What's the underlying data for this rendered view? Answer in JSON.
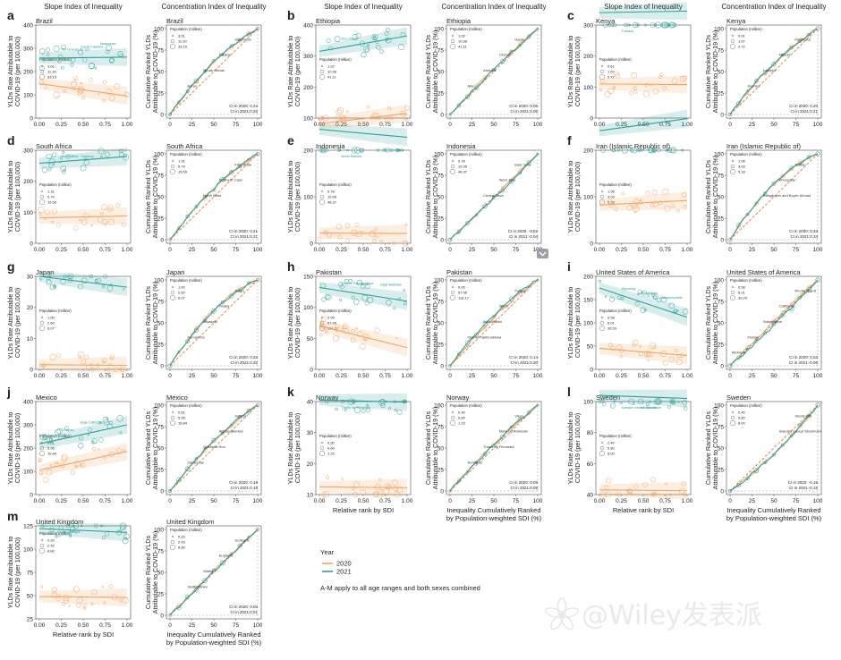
{
  "column_headers": {
    "slope": "Slope Index of Inequality",
    "concentration": "Concentration Index of Inequality"
  },
  "axis_text": {
    "slope_ylabel_line1": "YLDs Rate Attributable to",
    "slope_ylabel_line2": "COVID-19 (per 100,000)",
    "conc_ylabel_line1": "Cumulative Ranked YLDs",
    "conc_ylabel_line2": "Attributable to COVID-19 (%)",
    "slope_xlabel": "Relative rank by SDI",
    "conc_xlabel_line1": "Inequality Cumulatively Ranked",
    "conc_xlabel_line2": "by Population-weighted SDI (%)",
    "pop_legend_title": "Population (million)"
  },
  "legend": {
    "title": "Year",
    "entries": [
      {
        "label": "2020",
        "color": "#f4a261"
      },
      {
        "label": "2021",
        "color": "#2aa198"
      }
    ],
    "note": "A-M apply to all age ranges and both sexes combined"
  },
  "colors": {
    "y2020": "#f4a261",
    "y2021": "#2aa198",
    "equality": "#e07b39"
  },
  "watermark": "@Wiley发表派",
  "chart_data": [
    {
      "type": "scatter",
      "panel": "a",
      "country": "Brazil",
      "ylim": [
        0,
        400
      ],
      "yticks": [
        0,
        100,
        200,
        300,
        400
      ],
      "xticks": [
        "0.00",
        "0.25",
        "0.50",
        "0.75",
        "1.00"
      ],
      "series": [
        {
          "name": "2020",
          "fit_start": 148,
          "fit_end": 95
        },
        {
          "name": "2021",
          "fit_start": 258,
          "fit_end": 262
        }
      ],
      "pop_legend": [
        "3.61",
        "11.30",
        "33.15"
      ],
      "ci_2020": "CI in 2020: 0.24",
      "ci_2021": "CI in 2021:0.26",
      "labels_2021": [
        "Rio Grande do Sul",
        "Santa Catarina",
        "Amazonas"
      ],
      "conc_labels": [
        "São Paulo",
        "Paraná",
        "Minas Gerais",
        "Bahia"
      ]
    },
    {
      "type": "scatter",
      "panel": "b",
      "country": "Ethiopia",
      "ylim": [
        100,
        400
      ],
      "yticks": [
        100,
        200,
        300,
        400
      ],
      "xticks": [
        "0.00",
        "0.25",
        "0.50",
        "0.75",
        "1.00"
      ],
      "series": [
        {
          "name": "2020",
          "fit_start": 82,
          "fit_end": 115
        },
        {
          "name": "2021",
          "fit_start": 315,
          "fit_end": 365
        }
      ],
      "pop_legend": [
        "1.02",
        "10.38",
        "41.11"
      ],
      "ci_2020": "CI in 2020: 0.06",
      "ci_2021": "CI in 2021:0.05",
      "labels_2021": [
        "Dire Dawa"
      ],
      "conc_labels": [
        "Harari",
        "Oromia",
        "Amhara",
        "Afar"
      ]
    },
    {
      "type": "scatter",
      "panel": "c",
      "country": "Kenya",
      "ylim": [
        0,
        300
      ],
      "yticks": [
        0,
        100,
        200,
        300
      ],
      "xticks": [
        "0.00",
        "0.25",
        "0.50",
        "0.75",
        "1.00"
      ],
      "series": [
        {
          "name": "2020",
          "fit_start": 110,
          "fit_end": 108
        },
        {
          "name": "2021",
          "fit_start": 340,
          "fit_end": 345
        }
      ],
      "pop_legend": [
        "0.61",
        "1.67",
        "2.72"
      ],
      "ci_2020": "CI in 2020: 0.20",
      "ci_2021": "CI in 2021:0.21",
      "labels_2021": [
        "Turkana"
      ],
      "conc_labels": [
        "Mombasa",
        "Nairobi",
        "Laikipia",
        "Kiambu"
      ]
    },
    {
      "type": "scatter",
      "panel": "d",
      "country": "South Africa",
      "ylim": [
        0,
        300
      ],
      "yticks": [
        0,
        100,
        200,
        300
      ],
      "xticks": [
        "0.00",
        "0.25",
        "0.50",
        "0.75",
        "1.00"
      ],
      "series": [
        {
          "name": "2020",
          "fit_start": 82,
          "fit_end": 88
        },
        {
          "name": "2021",
          "fit_start": 258,
          "fit_end": 280
        }
      ],
      "pop_legend": [
        "1.31",
        "5.74",
        "15.55"
      ],
      "ci_2020": "CI in 2020: 0.21",
      "ci_2021": "CI in 2021:0.21",
      "labels_2021": [
        "North West",
        "Gauteng"
      ],
      "conc_labels": [
        "Free State",
        "Northern Cape",
        "North West"
      ]
    },
    {
      "type": "scatter",
      "panel": "e",
      "country": "Indonesia",
      "ylim": [
        0,
        200
      ],
      "yticks": [
        0,
        100,
        200
      ],
      "xticks": [
        "0.00",
        "0.25",
        "0.50",
        "0.75",
        "1.00"
      ],
      "series": [
        {
          "name": "2020",
          "fit_start": 22,
          "fit_end": 21
        },
        {
          "name": "2021",
          "fit_start": 245,
          "fit_end": 228
        }
      ],
      "pop_legend": [
        "0.78",
        "15.95",
        "48.37"
      ],
      "ci_2020": "CI in 2020: -0.02",
      "ci_2021": "CI in 2021:-0.04",
      "labels_2021": [
        "North Maluku"
      ],
      "conc_labels": [
        "East Java",
        "West Java",
        "Central Java"
      ]
    },
    {
      "type": "scatter",
      "panel": "f",
      "country": "Iran (Islamic Republic of)",
      "ylim": [
        0,
        200
      ],
      "yticks": [
        0,
        100,
        200
      ],
      "xticks": [
        "0.00",
        "0.25",
        "0.50",
        "0.75",
        "1.00"
      ],
      "series": [
        {
          "name": "2020",
          "fit_start": 82,
          "fit_end": 92
        },
        {
          "name": "2021",
          "fit_start": 242,
          "fit_end": 268
        }
      ],
      "pop_legend": [
        "1.08",
        "3.03",
        "5.18"
      ],
      "ci_2020": "CI in 2020: 0.33",
      "ci_2021": "CI in 2021:0.34",
      "labels_2021": [],
      "conc_labels": [
        "Tehran",
        "Khuzestan",
        "Kohgiluyeh and Boyer-Ahmad"
      ]
    },
    {
      "type": "scatter",
      "panel": "g",
      "country": "Japan",
      "ylim": [
        0,
        30
      ],
      "yticks": [
        0,
        10,
        20,
        30
      ],
      "xticks": [
        "0.00",
        "0.25",
        "0.50",
        "0.75",
        "1.00"
      ],
      "series": [
        {
          "name": "2020",
          "fit_start": 1.5,
          "fit_end": 1.3
        },
        {
          "name": "2021",
          "fit_start": 30,
          "fit_end": 26.5
        }
      ],
      "pop_legend": [
        "1.00",
        "2.60",
        "6.07"
      ],
      "ci_2020": "CI in 2020: 0.33",
      "ci_2021": "CI in 2021:0.32",
      "labels_2021": [],
      "conc_labels": [
        "Tokyo",
        "Osaka",
        "Miyazaki",
        "Kumamoto"
      ]
    },
    {
      "type": "scatter",
      "panel": "h",
      "country": "Pakistan",
      "ylim": [
        0,
        150
      ],
      "yticks": [
        0,
        50,
        100,
        150
      ],
      "xticks": [
        "0.00",
        "0.25",
        "0.50",
        "0.75",
        "1.00"
      ],
      "series": [
        {
          "name": "2020",
          "fit_start": 70,
          "fit_end": 35
        },
        {
          "name": "2021",
          "fit_start": 132,
          "fit_end": 110
        }
      ],
      "pop_legend": [
        "0.05",
        "57.45",
        "118.17"
      ],
      "ci_2020": "CI in 2020: 0.14",
      "ci_2021": "CI in 2021:0.20",
      "labels_2021": [
        "Khyber Pakhtunkhwa",
        "Sindh",
        "Gilgit-Baltistan"
      ],
      "conc_labels": [
        "Punjab",
        "Sindh",
        "Balochistan",
        "Khyber Pakhtunkhwa"
      ]
    },
    {
      "type": "scatter",
      "panel": "i",
      "country": "United States of America",
      "ylim": [
        0,
        200
      ],
      "yticks": [
        0,
        50,
        100,
        150,
        200
      ],
      "xticks": [
        "0.00",
        "0.25",
        "0.50",
        "0.75",
        "1.00"
      ],
      "series": [
        {
          "name": "2020",
          "fit_start": 45,
          "fit_end": 30
        },
        {
          "name": "2021",
          "fit_start": 175,
          "fit_end": 112
        }
      ],
      "pop_legend": [
        "0.58",
        "6.01",
        "39.29"
      ],
      "ci_2020": "CI in 2020: 0.03",
      "ci_2021": "CI in 2021:-0.06",
      "labels_2021": [
        "Wyoming",
        "Mississippi",
        "Massachusetts"
      ],
      "conc_labels": [
        "Rhode Island",
        "California",
        "Washington",
        "Florida",
        "Michigan"
      ]
    },
    {
      "type": "scatter",
      "panel": "j",
      "country": "Mexico",
      "ylim": [
        0,
        400
      ],
      "yticks": [
        0,
        100,
        200,
        300,
        400
      ],
      "xticks": [
        "0.00",
        "0.25",
        "0.50",
        "0.75",
        "1.00"
      ],
      "series": [
        {
          "name": "2020",
          "fit_start": 105,
          "fit_end": 185
        },
        {
          "name": "2021",
          "fit_start": 218,
          "fit_end": 300
        }
      ],
      "pop_legend": [
        "0.81",
        "5.95",
        "16.84"
      ],
      "ci_2020": "CI in 2020: 0.18",
      "ci_2021": "CI in 2021:0.19",
      "labels_2021": [
        "Chiapas",
        "Baja California"
      ],
      "conc_labels": [
        "Sonora",
        "Aguascalientes",
        "Quintana Roo",
        "Zacatecas"
      ]
    },
    {
      "type": "scatter",
      "panel": "k",
      "country": "Norway",
      "ylim": [
        10,
        40
      ],
      "yticks": [
        10,
        20,
        30,
        40
      ],
      "xticks": [
        "0.00",
        "0.25",
        "0.50",
        "0.75",
        "1.00"
      ],
      "series": [
        {
          "name": "2020",
          "fit_start": 12.5,
          "fit_end": 12.2
        },
        {
          "name": "2021",
          "fit_start": 40.5,
          "fit_end": 39.8
        }
      ],
      "pop_legend": [
        "0.30",
        "0.64",
        "1.23"
      ],
      "ci_2020": "CI in 2020: 0.09",
      "ci_2021": "CI in 2021:0.09",
      "labels_2021": [
        "Troms og Finnmark"
      ],
      "conc_labels": [
        "Viken",
        "Møre og Romsdal",
        "Troms og Finnmark",
        "Nordland"
      ]
    },
    {
      "type": "scatter",
      "panel": "l",
      "country": "Sweden",
      "ylim": [
        40,
        100
      ],
      "yticks": [
        40,
        60,
        80,
        100
      ],
      "xticks": [
        "0.00",
        "0.25",
        "0.50",
        "0.75",
        "1.00"
      ],
      "series": [
        {
          "name": "2020",
          "fit_start": 43,
          "fit_end": 42.5
        },
        {
          "name": "2021",
          "fit_start": 104,
          "fit_end": 102
        }
      ],
      "pop_legend": [
        "2.40",
        "5.80",
        "8.00"
      ],
      "ci_2020": "CI in 2020: -0.15",
      "ci_2021": "CI in 2021:-0.15",
      "labels_2021": [
        "Sweden except Stockholm",
        "Stockholm"
      ],
      "conc_labels": [
        "Stockholm",
        "Sweden except Stockholm"
      ]
    },
    {
      "type": "scatter",
      "panel": "m",
      "country": "United Kingdom",
      "ylim": [
        25,
        125
      ],
      "yticks": [
        25,
        50,
        75,
        100,
        125
      ],
      "xticks": [
        "0.00",
        "0.25",
        "0.50",
        "0.75",
        "1.00"
      ],
      "series": [
        {
          "name": "2020",
          "fit_start": 49,
          "fit_end": 48
        },
        {
          "name": "2021",
          "fit_start": 122,
          "fit_end": 118
        }
      ],
      "pop_legend": [
        "0.20",
        "2.43",
        "8.80"
      ],
      "ci_2020": "CI in 2020: 0.03",
      "ci_2021": "CI in 2021:0.01",
      "labels_2021": [
        "Isle of Wight"
      ],
      "conc_labels": [
        "Scotland",
        "England",
        "Wales",
        "Staffordshire"
      ]
    }
  ]
}
